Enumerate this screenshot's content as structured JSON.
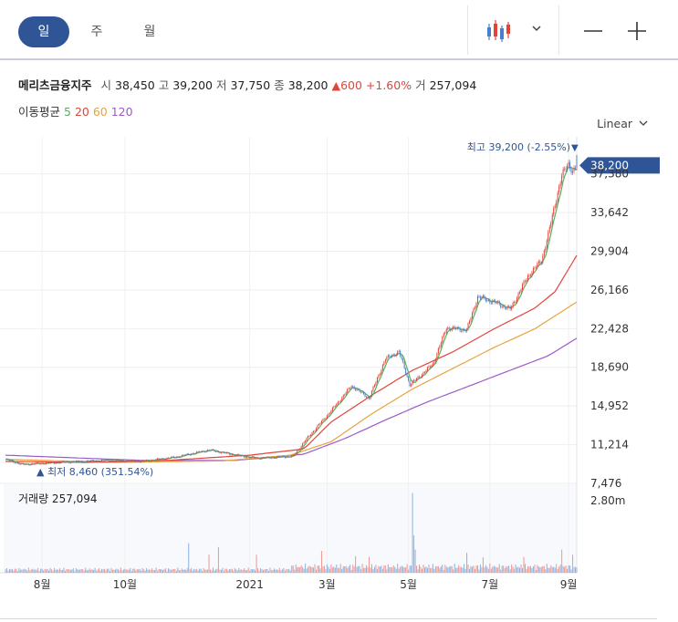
{
  "toolbar": {
    "tabs": [
      "일",
      "주",
      "월"
    ],
    "active_tab": "일"
  },
  "stock": {
    "name": "메리츠금융지주",
    "open_label": "시",
    "open": "38,450",
    "high_label": "고",
    "high": "39,200",
    "low_label": "저",
    "low": "37,750",
    "close_label": "종",
    "close": "38,200",
    "change_arrow": "▲",
    "change": "600",
    "change_pct": "+1.60%",
    "volume_label": "거",
    "volume": "257,094"
  },
  "moving_average": {
    "label": "이동평균",
    "periods": [
      {
        "value": "5",
        "color": "#57b05f"
      },
      {
        "value": "20",
        "color": "#e0453a"
      },
      {
        "value": "60",
        "color": "#e8a33d"
      },
      {
        "value": "120",
        "color": "#9a5ac8"
      }
    ]
  },
  "scale_selector": "Linear",
  "colors": {
    "accent": "#2f5597",
    "up": "#e0453a",
    "down": "#4a7fc8",
    "ma5": "#57b05f",
    "ma20": "#e0453a",
    "ma60": "#e8a33d",
    "ma120": "#9a5ac8"
  },
  "chart_data": {
    "type": "candlestick",
    "ylim": [
      7476,
      39200
    ],
    "y_ticks": [
      "37,380",
      "33,642",
      "29,904",
      "26,166",
      "22,428",
      "18,690",
      "14,952",
      "11,214",
      "7,476"
    ],
    "y_tick_values": [
      37380,
      33642,
      29904,
      26166,
      22428,
      18690,
      14952,
      11214,
      7476
    ],
    "x_ticks": [
      "8월",
      "10월",
      "2021",
      "3월",
      "5월",
      "7월",
      "9월"
    ],
    "x_tick_days": [
      27,
      88,
      180,
      237,
      297,
      357,
      415
    ],
    "current_price_label": "38,200",
    "current_price": 38200,
    "high_annotation": "최고 39,200 (-2.55%)",
    "high_arrow": "▼",
    "low_annotation": "최저 8,460 (351.54%)",
    "low_arrow": "▲",
    "price_anchors": {
      "day": [
        0,
        12,
        40,
        75,
        100,
        125,
        150,
        170,
        185,
        200,
        212,
        222,
        240,
        255,
        268,
        280,
        290,
        298,
        305,
        315,
        325,
        340,
        348,
        360,
        372,
        385,
        395,
        400,
        405,
        410,
        415,
        418,
        421
      ],
      "close": [
        9800,
        9300,
        9500,
        9700,
        9600,
        10000,
        10700,
        10200,
        9900,
        10000,
        10100,
        11800,
        14500,
        16900,
        15700,
        19500,
        20200,
        17000,
        17800,
        19000,
        22500,
        22300,
        25500,
        25000,
        24300,
        27500,
        29000,
        31500,
        34500,
        37200,
        38400,
        37600,
        38200
      ]
    },
    "ma_paths": {
      "ma20": {
        "day": [
          0,
          60,
          120,
          180,
          220,
          240,
          270,
          300,
          330,
          360,
          390,
          405,
          421
        ],
        "value": [
          9600,
          9500,
          9700,
          10200,
          10800,
          13400,
          16000,
          18400,
          20200,
          22400,
          24400,
          26000,
          29500
        ]
      },
      "ma60": {
        "day": [
          0,
          80,
          160,
          210,
          240,
          270,
          300,
          330,
          360,
          390,
          421
        ],
        "value": [
          9800,
          9500,
          9650,
          10200,
          11500,
          14200,
          16600,
          18600,
          20600,
          22400,
          25000
        ]
      },
      "ma120": {
        "day": [
          0,
          100,
          170,
          220,
          250,
          280,
          310,
          340,
          370,
          400,
          421
        ],
        "value": [
          10200,
          9700,
          9700,
          10300,
          11800,
          13600,
          15300,
          16800,
          18300,
          19800,
          21500
        ]
      }
    },
    "volume": {
      "label": "거래량",
      "value": "257,094",
      "tick_label": "2.80m",
      "tick_value": 2800000,
      "max": 3300000,
      "spikes": [
        {
          "day": 135,
          "value": 1150000,
          "dir": "down"
        },
        {
          "day": 150,
          "value": 700000,
          "dir": "up"
        },
        {
          "day": 157,
          "value": 1000000,
          "dir": "up"
        },
        {
          "day": 185,
          "value": 700000,
          "dir": "up"
        },
        {
          "day": 233,
          "value": 850000,
          "dir": "up"
        },
        {
          "day": 258,
          "value": 650000,
          "dir": "up"
        },
        {
          "day": 268,
          "value": 620000,
          "dir": "up"
        },
        {
          "day": 300,
          "value": 3100000,
          "dir": "down"
        },
        {
          "day": 301,
          "value": 1450000,
          "dir": "up"
        },
        {
          "day": 302,
          "value": 900000,
          "dir": "down"
        },
        {
          "day": 340,
          "value": 780000,
          "dir": "down"
        },
        {
          "day": 352,
          "value": 600000,
          "dir": "up"
        },
        {
          "day": 382,
          "value": 620000,
          "dir": "up"
        },
        {
          "day": 410,
          "value": 900000,
          "dir": "up"
        },
        {
          "day": 418,
          "value": 700000,
          "dir": "up"
        }
      ]
    }
  }
}
